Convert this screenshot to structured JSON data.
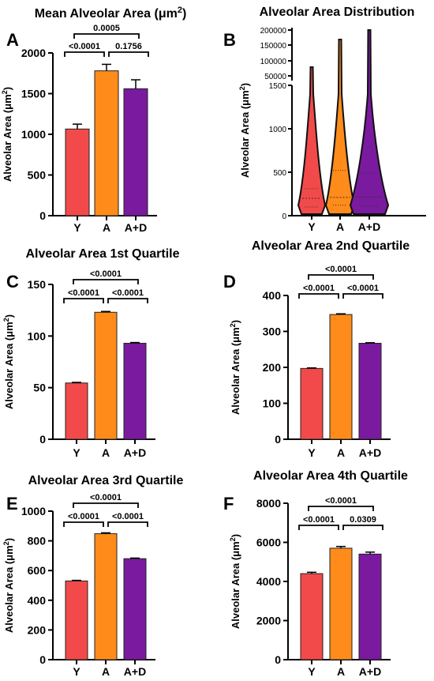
{
  "colors": {
    "Y": "#f24a4a",
    "A": "#ff8c1a",
    "A+D": "#7a1a9e",
    "axis": "#000000"
  },
  "chart_data": [
    {
      "panel": "A",
      "type": "bar",
      "title": "Mean  Alveolar Area (μm²)",
      "ylabel": "Alveolar Area (μm²)",
      "categories": [
        "Y",
        "A",
        "A+D"
      ],
      "values": [
        1065,
        1780,
        1560
      ],
      "errors": [
        60,
        80,
        110
      ],
      "ylim": [
        0,
        2000
      ],
      "yticks": [
        "0",
        "500",
        "1000",
        "1500",
        "2000"
      ],
      "yticks_values": [
        0,
        500,
        1000,
        1500,
        2000
      ],
      "comparisons": [
        {
          "from": 0,
          "to": 2,
          "label": "0.0005",
          "level": 0
        },
        {
          "from": 0,
          "to": 1,
          "label": "<0.0001",
          "level": 1
        },
        {
          "from": 1,
          "to": 2,
          "label": "0.1756",
          "level": 1
        }
      ]
    },
    {
      "panel": "B",
      "type": "violin",
      "title": "Alveolar Area Distribution",
      "ylabel": "Alveolar Area (μm²)",
      "categories": [
        "Y",
        "A",
        "A+D"
      ],
      "lower_ticks": [
        "0",
        "500",
        "1000",
        "1500"
      ],
      "upper_ticks": [
        "50000",
        "100000",
        "150000",
        "200000"
      ],
      "max_values": [
        85000,
        165000,
        200000
      ],
      "medians": [
        200,
        210,
        215
      ],
      "quartiles": [
        [
          100,
          310
        ],
        [
          120,
          520
        ],
        [
          110,
          490
        ]
      ]
    },
    {
      "panel": "C",
      "type": "bar",
      "title": "Alveolar Area 1st Quartile",
      "ylabel": "Alveolar Area (μm²)",
      "categories": [
        "Y",
        "A",
        "A+D"
      ],
      "values": [
        54.5,
        123,
        93
      ],
      "errors": [
        0.6,
        0.8,
        0.7
      ],
      "ylim": [
        0,
        150
      ],
      "yticks": [
        "0",
        "50",
        "100",
        "150"
      ],
      "yticks_values": [
        0,
        50,
        100,
        150
      ],
      "comparisons": [
        {
          "from": 0,
          "to": 2,
          "label": "<0.0001",
          "level": 0
        },
        {
          "from": 0,
          "to": 1,
          "label": "<0.0001",
          "level": 1
        },
        {
          "from": 1,
          "to": 2,
          "label": "<0.0001",
          "level": 1
        }
      ]
    },
    {
      "panel": "D",
      "type": "bar",
      "title": "Alveolar Area 2nd Quartile",
      "ylabel": "Alveolar Area (μm²)",
      "categories": [
        "Y",
        "A",
        "A+D"
      ],
      "values": [
        197,
        347,
        267
      ],
      "errors": [
        1.5,
        2,
        1.5
      ],
      "ylim": [
        0,
        400
      ],
      "yticks": [
        "0",
        "100",
        "200",
        "300",
        "400"
      ],
      "yticks_values": [
        0,
        100,
        200,
        300,
        400
      ],
      "comparisons": [
        {
          "from": 0,
          "to": 2,
          "label": "<0.0001",
          "level": 0
        },
        {
          "from": 0,
          "to": 1,
          "label": "<0.0001",
          "level": 1
        },
        {
          "from": 1,
          "to": 2,
          "label": "<0.0001",
          "level": 1
        }
      ]
    },
    {
      "panel": "E",
      "type": "bar",
      "title": "Alveolar Area 3rd Quartile",
      "ylabel": "Alveolar Area (μm²)",
      "categories": [
        "Y",
        "A",
        "A+D"
      ],
      "values": [
        530,
        848,
        680
      ],
      "errors": [
        4,
        6,
        4
      ],
      "ylim": [
        0,
        1000
      ],
      "yticks": [
        "0",
        "200",
        "400",
        "600",
        "800",
        "1000"
      ],
      "yticks_values": [
        0,
        200,
        400,
        600,
        800,
        1000
      ],
      "comparisons": [
        {
          "from": 0,
          "to": 2,
          "label": "<0.0001",
          "level": 0
        },
        {
          "from": 0,
          "to": 1,
          "label": "<0.0001",
          "level": 1
        },
        {
          "from": 1,
          "to": 2,
          "label": "<0.0001",
          "level": 1
        }
      ]
    },
    {
      "panel": "F",
      "type": "bar",
      "title": "Alveolar Area 4th Quartile",
      "ylabel": "Alveolar Area (μm²)",
      "categories": [
        "Y",
        "A",
        "A+D"
      ],
      "values": [
        4400,
        5700,
        5400
      ],
      "errors": [
        70,
        90,
        100
      ],
      "ylim": [
        0,
        8000
      ],
      "yticks": [
        "0",
        "2000",
        "4000",
        "6000",
        "8000"
      ],
      "yticks_values": [
        0,
        2000,
        4000,
        6000,
        8000
      ],
      "comparisons": [
        {
          "from": 0,
          "to": 2,
          "label": "<0.0001",
          "level": 0
        },
        {
          "from": 0,
          "to": 1,
          "label": "<0.0001",
          "level": 1
        },
        {
          "from": 1,
          "to": 2,
          "label": "0.0309",
          "level": 1
        }
      ]
    }
  ]
}
